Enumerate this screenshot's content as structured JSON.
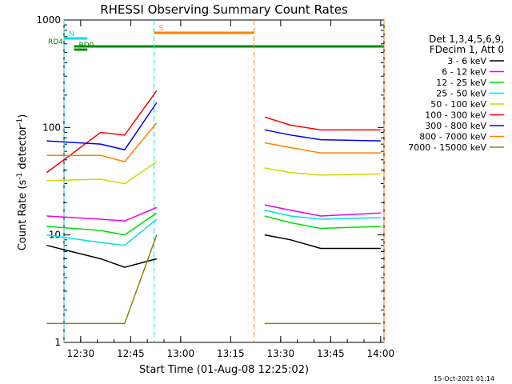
{
  "chart_data": {
    "type": "line",
    "title": "RHESSI Observing Summary Count Rates",
    "xlabel": "Start Time (01-Aug-08 12:25:02)",
    "ylabel": "Count Rate (s",
    "ylabel_sup": "-1",
    "ylabel_tail": " detector",
    "ylabel_tail_sup": "-1",
    "ylabel_close": ")",
    "yscale": "log",
    "ylim": [
      1,
      1000
    ],
    "xlim": [
      "12:25",
      "14:01"
    ],
    "x_ticks": [
      "12:30",
      "12:45",
      "13:00",
      "13:15",
      "13:30",
      "13:45",
      "14:00"
    ],
    "y_ticks": [
      "1",
      "10",
      "100",
      "1000"
    ],
    "timestamp": "15-Oct-2021 01:14",
    "legend_header": [
      "Det 1,3,4,5,6,9,",
      "FDecim 1, Att 0"
    ],
    "segments": [
      [
        "12:25",
        "12:52"
      ],
      [
        "13:22",
        "14:01"
      ]
    ],
    "series": [
      {
        "name": "3 - 6 keV",
        "color": "#000000",
        "values": [
          [
            12.33,
            8
          ],
          [
            12.6,
            6
          ],
          [
            12.72,
            5
          ],
          [
            12.88,
            6
          ],
          [
            13.42,
            10
          ],
          [
            13.55,
            9
          ],
          [
            13.7,
            7.5
          ],
          [
            14.0,
            7.5
          ]
        ]
      },
      {
        "name": "6 - 12 keV",
        "color": "#ee00ee",
        "values": [
          [
            12.33,
            15
          ],
          [
            12.6,
            14
          ],
          [
            12.72,
            13.5
          ],
          [
            12.88,
            18
          ],
          [
            13.42,
            19
          ],
          [
            13.55,
            17
          ],
          [
            13.7,
            15
          ],
          [
            14.0,
            16
          ]
        ]
      },
      {
        "name": "12 - 25 keV",
        "color": "#00dd00",
        "values": [
          [
            12.33,
            12
          ],
          [
            12.6,
            11
          ],
          [
            12.72,
            10
          ],
          [
            12.88,
            16
          ],
          [
            13.42,
            15
          ],
          [
            13.55,
            13
          ],
          [
            13.7,
            11.5
          ],
          [
            14.0,
            12
          ]
        ]
      },
      {
        "name": "25 - 50 keV",
        "color": "#00e0e0",
        "values": [
          [
            12.33,
            10
          ],
          [
            12.6,
            8.5
          ],
          [
            12.72,
            8
          ],
          [
            12.88,
            14
          ],
          [
            13.42,
            17
          ],
          [
            13.55,
            15
          ],
          [
            13.7,
            14
          ],
          [
            14.0,
            14.5
          ]
        ]
      },
      {
        "name": "50 - 100 keV",
        "color": "#d4d400",
        "values": [
          [
            12.33,
            32
          ],
          [
            12.6,
            33
          ],
          [
            12.72,
            30
          ],
          [
            12.88,
            48
          ],
          [
            13.42,
            42
          ],
          [
            13.55,
            38
          ],
          [
            13.7,
            36
          ],
          [
            14.0,
            37
          ]
        ]
      },
      {
        "name": "100 - 300 keV",
        "color": "#ff0000",
        "values": [
          [
            12.33,
            38
          ],
          [
            12.6,
            90
          ],
          [
            12.72,
            85
          ],
          [
            12.88,
            220
          ],
          [
            13.42,
            125
          ],
          [
            13.55,
            105
          ],
          [
            13.7,
            95
          ],
          [
            14.0,
            95
          ]
        ]
      },
      {
        "name": "300 - 800 keV",
        "color": "#0000ff",
        "values": [
          [
            12.33,
            75
          ],
          [
            12.6,
            70
          ],
          [
            12.72,
            62
          ],
          [
            12.88,
            170
          ],
          [
            13.42,
            95
          ],
          [
            13.55,
            85
          ],
          [
            13.7,
            77
          ],
          [
            14.0,
            75
          ]
        ]
      },
      {
        "name": "800 - 7000 keV",
        "color": "#ff8000",
        "values": [
          [
            12.33,
            55
          ],
          [
            12.6,
            55
          ],
          [
            12.72,
            48
          ],
          [
            12.88,
            110
          ],
          [
            13.42,
            72
          ],
          [
            13.55,
            65
          ],
          [
            13.7,
            58
          ],
          [
            14.0,
            58
          ]
        ]
      },
      {
        "name": "7000 - 15000 keV",
        "color": "#888800",
        "values": [
          [
            12.33,
            1.5
          ],
          [
            12.6,
            1.5
          ],
          [
            12.72,
            1.5
          ],
          [
            12.88,
            10
          ],
          [
            13.42,
            1.5
          ],
          [
            13.55,
            1.5
          ],
          [
            13.7,
            1.5
          ],
          [
            14.0,
            1.5
          ]
        ]
      }
    ],
    "flags": [
      {
        "label": "RD0",
        "color": "#008800",
        "start": "12:28",
        "end": "12:32"
      },
      {
        "label": "RD4",
        "color": "#008800",
        "start": "12:28",
        "end": "14:01"
      },
      {
        "label": "N",
        "color": "#00e0e0",
        "start": "12:25",
        "end": "12:32"
      },
      {
        "label": "S",
        "color": "#ff8000",
        "start": "12:52",
        "end": "13:22"
      }
    ]
  }
}
